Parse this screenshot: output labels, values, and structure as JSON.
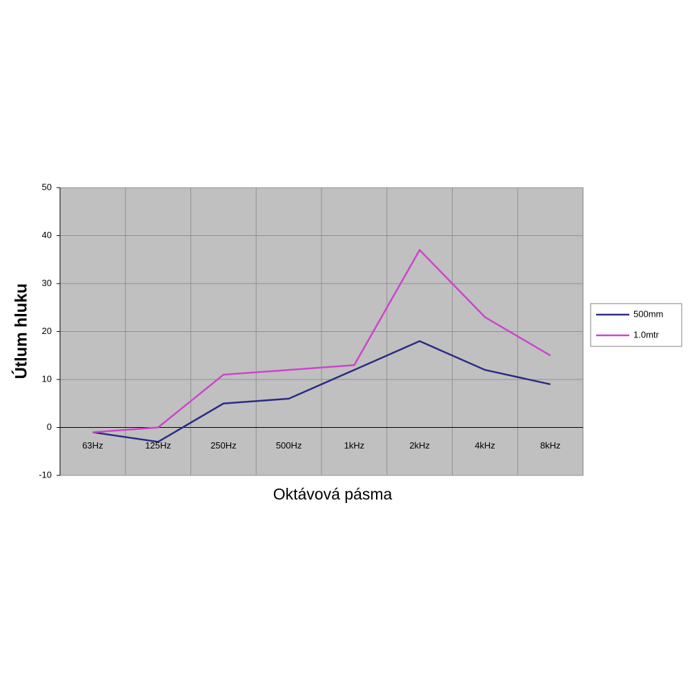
{
  "chart_data": {
    "type": "line",
    "x_label": "Oktávová pásma",
    "y_label": "Útlum hluku",
    "categories": [
      "63Hz",
      "125Hz",
      "250Hz",
      "500Hz",
      "1kHz",
      "2kHz",
      "4kHz",
      "8kHz"
    ],
    "series": [
      {
        "name": "500mm",
        "color": "#2b2b85",
        "values": [
          -1,
          -3,
          5,
          6,
          12,
          18,
          12,
          9
        ]
      },
      {
        "name": "1.0mtr",
        "color": "#cc44cc",
        "values": [
          -1,
          0,
          11,
          12,
          13,
          37,
          23,
          15
        ]
      }
    ],
    "ylim": [
      -10,
      50
    ],
    "yticks": [
      -10,
      0,
      10,
      20,
      30,
      40,
      50
    ],
    "grid": true,
    "legend": "right"
  }
}
